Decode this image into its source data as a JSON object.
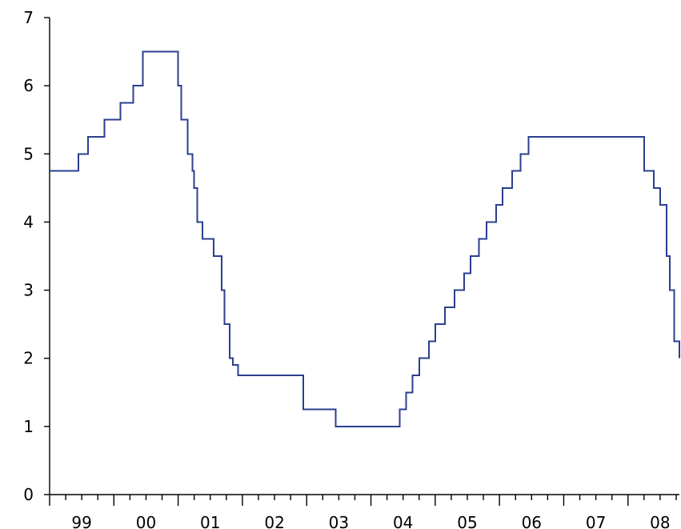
{
  "chart_data": {
    "type": "line",
    "title": "",
    "xlabel": "",
    "ylabel": "",
    "step": true,
    "grid": false,
    "legend": "none",
    "line_color": "#2b3f8f",
    "xlim": [
      1999.0,
      2008.8
    ],
    "ylim": [
      0,
      7
    ],
    "y_ticks": [
      0,
      1,
      2,
      3,
      4,
      5,
      6,
      7
    ],
    "x_tick_labels": [
      {
        "x": 1999.5,
        "label": "99"
      },
      {
        "x": 2000.5,
        "label": "00"
      },
      {
        "x": 2001.5,
        "label": "01"
      },
      {
        "x": 2002.5,
        "label": "02"
      },
      {
        "x": 2003.5,
        "label": "03"
      },
      {
        "x": 2004.5,
        "label": "04"
      },
      {
        "x": 2005.5,
        "label": "05"
      },
      {
        "x": 2006.5,
        "label": "06"
      },
      {
        "x": 2007.5,
        "label": "07"
      },
      {
        "x": 2008.5,
        "label": "08"
      }
    ],
    "series": [
      {
        "x": [
          1999.0,
          1999.45,
          1999.6,
          1999.85,
          2000.1,
          2000.3,
          2000.45,
          2001.0,
          2001.05,
          2001.15,
          2001.22,
          2001.25,
          2001.3,
          2001.38,
          2001.55,
          2001.68,
          2001.72,
          2001.8,
          2001.85,
          2001.93,
          2002.95,
          2003.45,
          2004.45,
          2004.55,
          2004.65,
          2004.75,
          2004.9,
          2005.0,
          2005.15,
          2005.3,
          2005.45,
          2005.55,
          2005.68,
          2005.8,
          2005.95,
          2006.05,
          2006.2,
          2006.33,
          2006.45,
          2006.6,
          2006.7,
          2006.8,
          2006.92,
          2007.07,
          2007.2,
          2008.25,
          2008.4,
          2008.5,
          2008.6,
          2008.65,
          2008.72,
          2008.8
        ],
        "y": [
          4.75,
          5.0,
          5.25,
          5.5,
          5.75,
          6.0,
          6.5,
          6.0,
          5.5,
          5.0,
          4.75,
          4.5,
          4.0,
          3.75,
          3.5,
          3.0,
          2.5,
          2.0,
          1.9,
          1.75,
          1.25,
          1.0,
          1.25,
          1.5,
          1.75,
          2.0,
          2.25,
          2.5,
          2.75,
          3.0,
          3.25,
          3.5,
          3.75,
          4.0,
          4.25,
          4.5,
          4.75,
          5.0,
          5.25,
          5.25,
          5.25,
          5.25,
          5.25,
          5.25,
          5.25,
          4.75,
          4.5,
          4.25,
          3.5,
          3.0,
          2.25,
          2.0
        ]
      }
    ]
  }
}
